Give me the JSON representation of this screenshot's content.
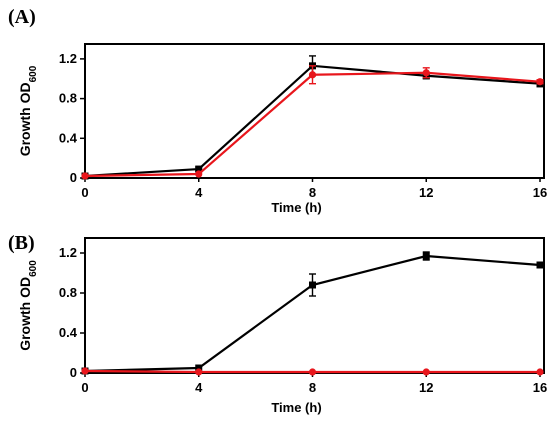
{
  "chart_data": [
    {
      "type": "line",
      "panel_label": "(A)",
      "title": "",
      "xlabel": "Time (h)",
      "ylabel": "Growth OD",
      "ylabel_sub": "600",
      "x": [
        0,
        4,
        8,
        12,
        16
      ],
      "xticks": [
        "0",
        "4",
        "8",
        "12",
        "16"
      ],
      "yticks": [
        "0",
        "0.4",
        "0.8",
        "1.2"
      ],
      "ylim": [
        0,
        1.35
      ],
      "xlim": [
        0,
        16
      ],
      "grid": false,
      "series": [
        {
          "color": "#000000",
          "marker": "square",
          "values": [
            0.02,
            0.09,
            1.13,
            1.03,
            0.95
          ],
          "errors": [
            0.01,
            0.02,
            0.1,
            0.03,
            0.03
          ]
        },
        {
          "color": "#e8161c",
          "marker": "circle",
          "values": [
            0.02,
            0.04,
            1.04,
            1.06,
            0.97
          ],
          "errors": [
            0.01,
            0.01,
            0.09,
            0.05,
            0.02
          ]
        }
      ]
    },
    {
      "type": "line",
      "panel_label": "(B)",
      "title": "",
      "xlabel": "Time (h)",
      "ylabel": "Growth OD",
      "ylabel_sub": "600",
      "x": [
        0,
        4,
        8,
        12,
        16
      ],
      "xticks": [
        "0",
        "4",
        "8",
        "12",
        "16"
      ],
      "yticks": [
        "0",
        "0.4",
        "0.8",
        "1.2"
      ],
      "ylim": [
        0,
        1.35
      ],
      "xlim": [
        0,
        16
      ],
      "grid": false,
      "series": [
        {
          "color": "#000000",
          "marker": "square",
          "values": [
            0.02,
            0.05,
            0.88,
            1.17,
            1.08
          ],
          "errors": [
            0.01,
            0.01,
            0.11,
            0.04,
            0.02
          ]
        },
        {
          "color": "#e8161c",
          "marker": "circle",
          "values": [
            0.02,
            0.01,
            0.01,
            0.01,
            0.01
          ],
          "errors": [
            0,
            0,
            0,
            0,
            0
          ]
        }
      ]
    }
  ]
}
